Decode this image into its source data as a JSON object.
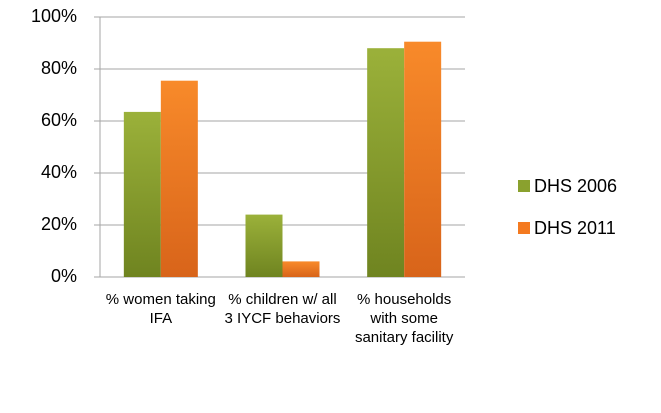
{
  "chart_data": {
    "type": "bar",
    "categories": [
      "% women taking IFA",
      "% children w/ all 3 IYCF behaviors",
      "% households with some sanitary facility"
    ],
    "series": [
      {
        "name": "DHS 2006",
        "color": "#8aa12e",
        "values": [
          63.5,
          24,
          88
        ]
      },
      {
        "name": "DHS 2011",
        "color": "#f47a20",
        "values": [
          75.5,
          6,
          90.5
        ]
      }
    ],
    "ylim": [
      0,
      100
    ],
    "yticks": [
      {
        "value": 0,
        "label": "0%"
      },
      {
        "value": 20,
        "label": "20%"
      },
      {
        "value": 40,
        "label": "40%"
      },
      {
        "value": 60,
        "label": "60%"
      },
      {
        "value": 80,
        "label": "80%"
      },
      {
        "value": 100,
        "label": "100%"
      }
    ],
    "grid": true,
    "legend": "right"
  }
}
